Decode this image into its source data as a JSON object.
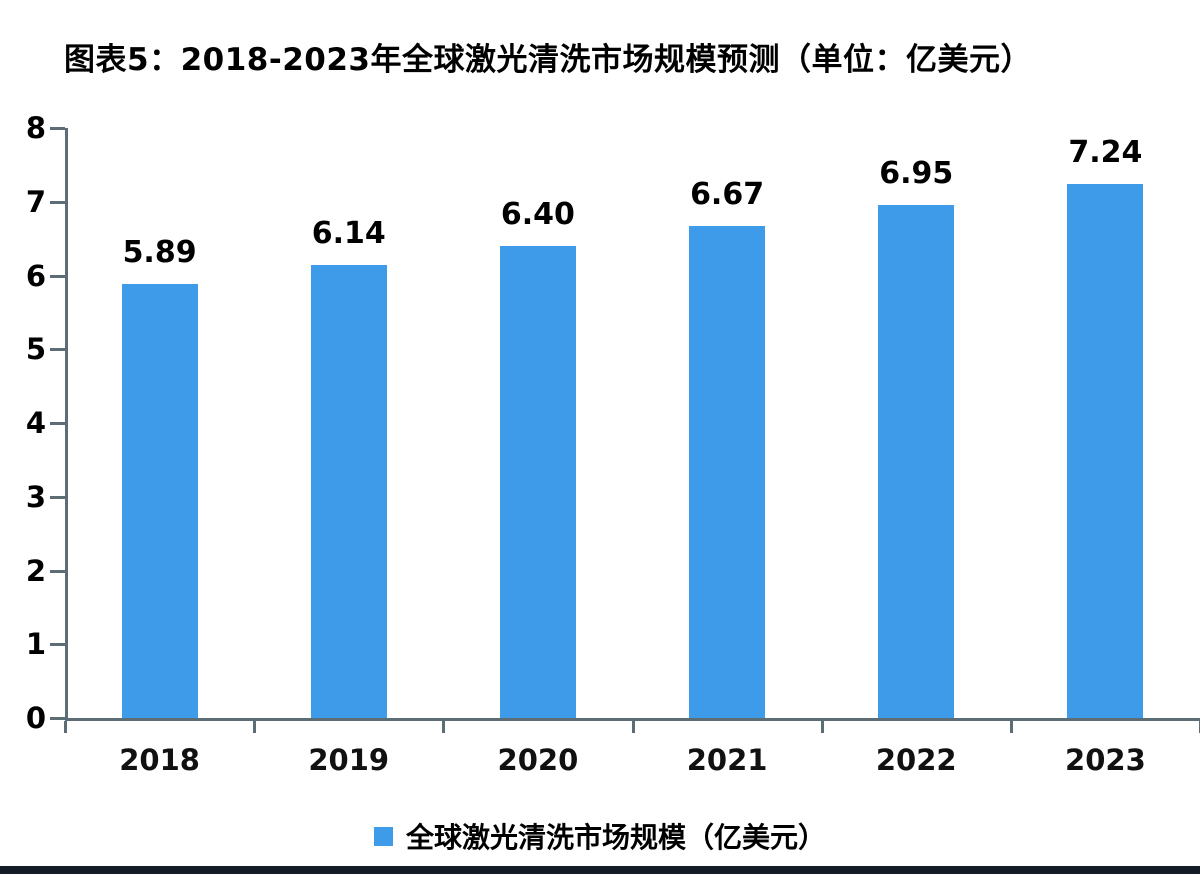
{
  "title": "图表5：2018-2023年全球激光清洗市场规模预测（单位：亿美元）",
  "legend": {
    "label": "全球激光清洗市场规模（亿美元）"
  },
  "colors": {
    "bar": "#3E9BE9",
    "axis": "#5D6D75",
    "text": "#000000",
    "bottom_bar": "#131C26",
    "background": "#FFFFFF"
  },
  "chart_data": {
    "type": "bar",
    "title": "图表5：2018-2023年全球激光清洗市场规模预测（单位：亿美元）",
    "categories": [
      "2018",
      "2019",
      "2020",
      "2021",
      "2022",
      "2023"
    ],
    "series": [
      {
        "name": "全球激光清洗市场规模（亿美元）",
        "values": [
          5.89,
          6.14,
          6.4,
          6.67,
          6.95,
          7.24
        ]
      }
    ],
    "value_labels": [
      "5.89",
      "6.14",
      "6.40",
      "6.67",
      "6.95",
      "7.24"
    ],
    "xlabel": "",
    "ylabel": "",
    "ylim": [
      0,
      8
    ],
    "yticks": [
      0,
      1,
      2,
      3,
      4,
      5,
      6,
      7,
      8
    ],
    "grid": false,
    "legend_position": "bottom",
    "bar_color": "#3E9BE9"
  }
}
